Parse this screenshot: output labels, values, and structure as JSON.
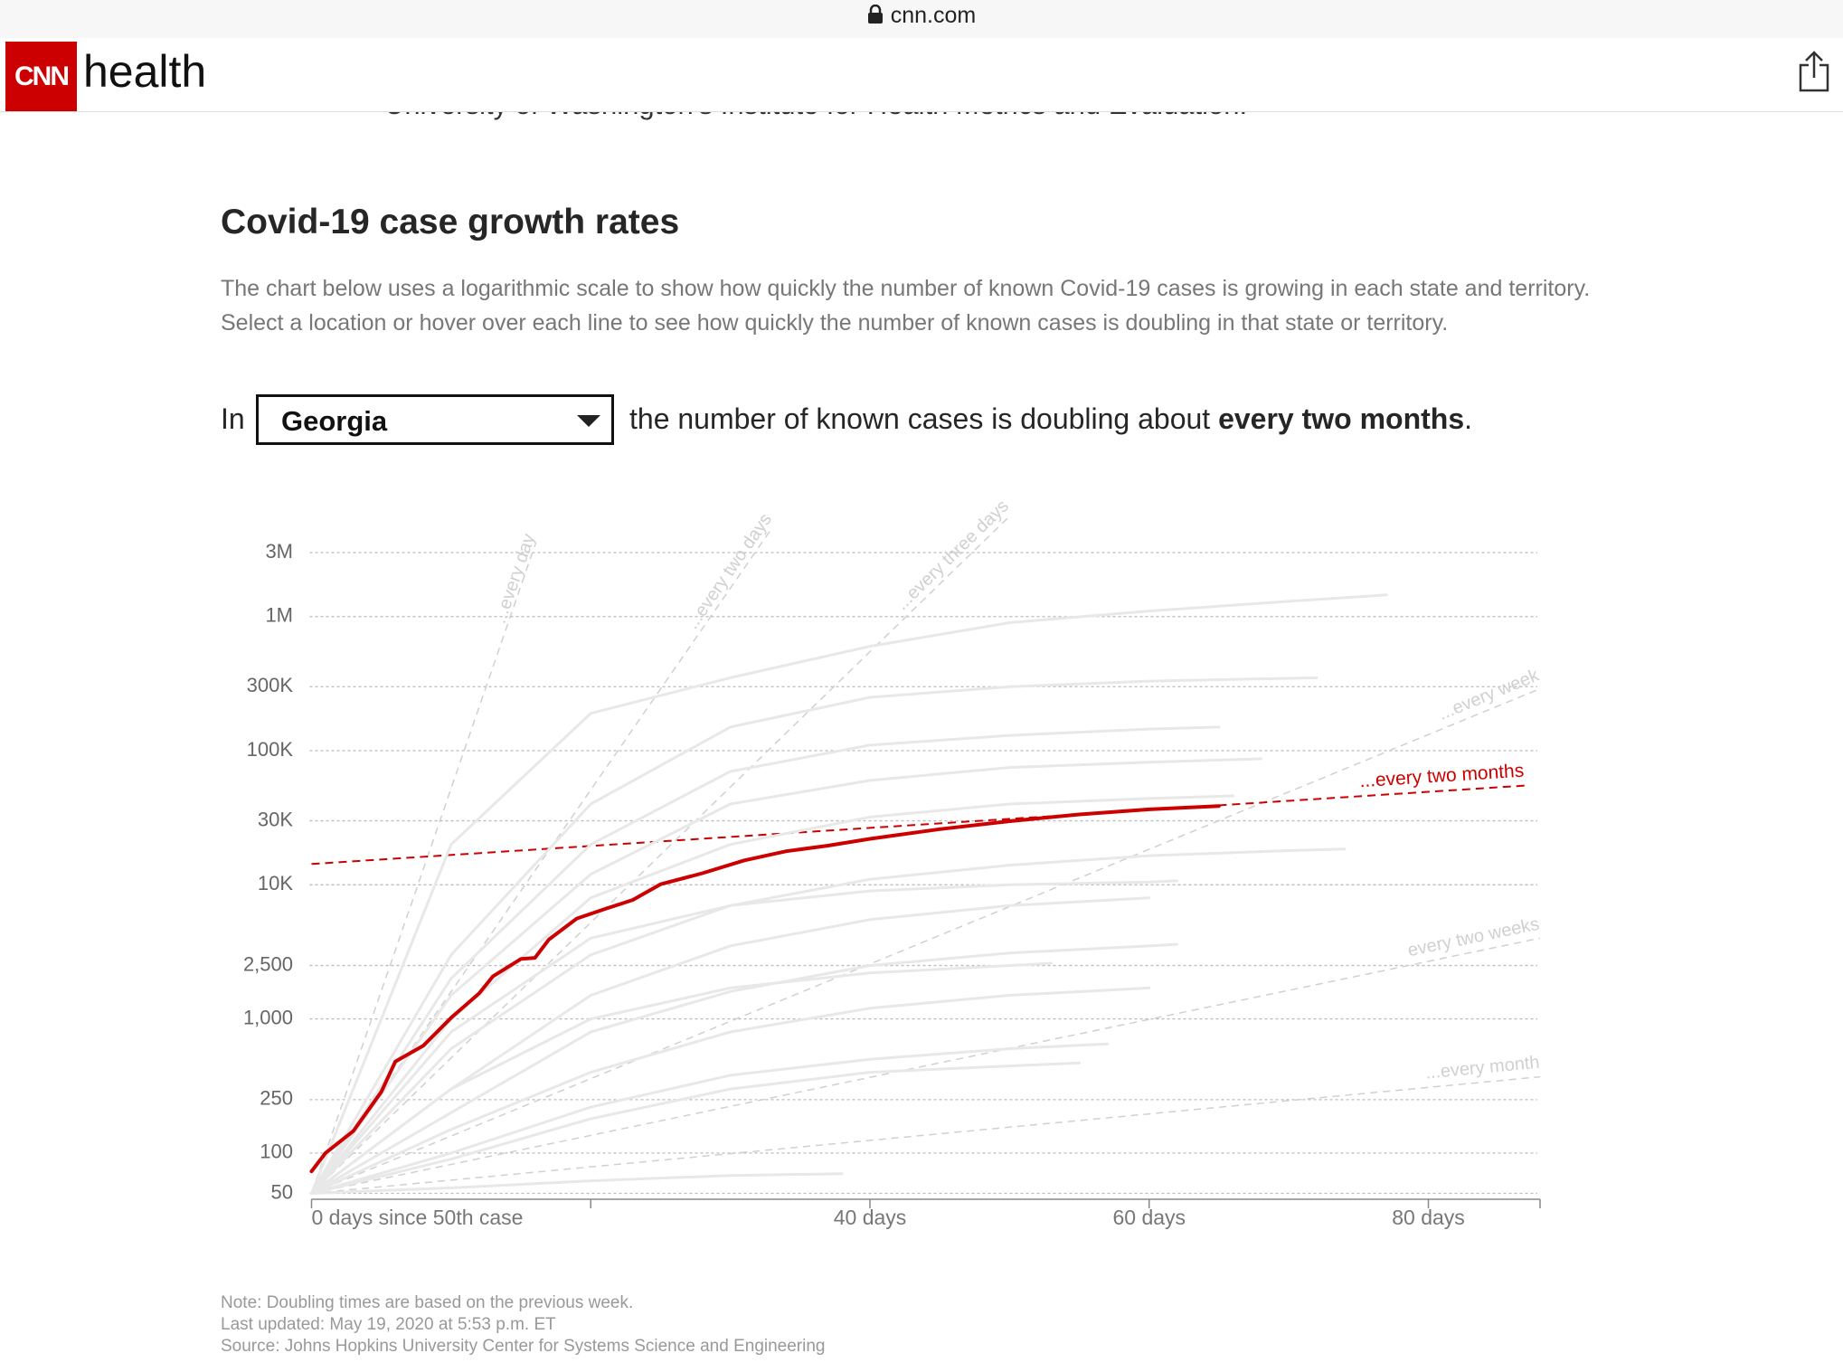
{
  "browser": {
    "url": "cnn.com"
  },
  "header": {
    "logo": "CNN",
    "section": "health"
  },
  "article": {
    "clipped_text": "University of Washington's Institute for Health Metrics and Evaluation.",
    "heading": "Covid-19 case growth rates",
    "description": "The chart below uses a logarithmic scale to show how quickly the number of known Covid-19 cases is growing in each state and territory. Select a location or hover over each line to see how quickly the number of known cases is doubling in that state or territory.",
    "selector": {
      "prefix": "In",
      "sentence": "the number of known cases is doubling about",
      "rate": "every two months",
      "end": "."
    },
    "notes": [
      "Note: Doubling times are based on the previous week.",
      "Last updated: May 19, 2020 at 5:53 p.m. ET",
      "Source: Johns Hopkins University Center for Systems Science and Engineering"
    ]
  },
  "chart_data": {
    "type": "line",
    "yscale": "log",
    "grid": true,
    "xlim": [
      0,
      88
    ],
    "xticks": [
      {
        "value": 0,
        "label": "0 days since 50th case"
      },
      {
        "value": 20
      },
      {
        "value": 40,
        "label": "40 days"
      },
      {
        "value": 60,
        "label": "60 days"
      },
      {
        "value": 80,
        "label": "80 days"
      }
    ],
    "ylim": [
      50,
      3000000
    ],
    "yticks": [
      50,
      100,
      250,
      {
        "value": 1000,
        "label": "1,000"
      },
      {
        "value": 2500,
        "label": "2,500"
      },
      {
        "value": 10000,
        "label": "10K"
      },
      {
        "value": 30000,
        "label": "30K"
      },
      {
        "value": 100000,
        "label": "100K"
      },
      {
        "value": 300000,
        "label": "300K"
      },
      {
        "value": 1000000,
        "label": "1M"
      },
      {
        "value": 3000000,
        "label": "3M"
      }
    ],
    "reference_lines": [
      {
        "label": "...every day",
        "color": "#d0d0d0",
        "x": [
          0,
          16
        ],
        "values": [
          50,
          3400000
        ]
      },
      {
        "label": "...every two days",
        "color": "#d0d0d0",
        "x": [
          0,
          33
        ],
        "values": [
          50,
          4600000
        ]
      },
      {
        "label": "...every three days",
        "color": "#d0d0d0",
        "x": [
          0,
          50
        ],
        "values": [
          50,
          5600000
        ]
      },
      {
        "label": "...every week",
        "color": "#d0d0d0",
        "x": [
          0,
          88
        ],
        "values": [
          50,
          290000
        ]
      },
      {
        "label": "every two weeks",
        "color": "#d0d0d0",
        "x": [
          0,
          88
        ],
        "values": [
          50,
          4000
        ]
      },
      {
        "label": "...every month",
        "color": "#d0d0d0",
        "x": [
          0,
          88
        ],
        "values": [
          50,
          370
        ]
      },
      {
        "label": "...every two months",
        "color": "#cc0000",
        "x": [
          0,
          87
        ],
        "values": [
          14300,
          55000
        ]
      }
    ],
    "series": [
      {
        "color": "#e8e8e8",
        "x": [
          0,
          10,
          20,
          30,
          40,
          50,
          60,
          70,
          77
        ],
        "values": [
          50,
          20000,
          190000,
          350000,
          600000,
          900000,
          1100000,
          1300000,
          1450000
        ]
      },
      {
        "color": "#e8e8e8",
        "x": [
          0,
          10,
          20,
          30,
          40,
          50,
          60,
          72
        ],
        "values": [
          50,
          3000,
          40000,
          150000,
          250000,
          300000,
          330000,
          350000
        ]
      },
      {
        "color": "#e8e8e8",
        "x": [
          0,
          10,
          20,
          30,
          40,
          50,
          60,
          65
        ],
        "values": [
          50,
          2000,
          20000,
          70000,
          110000,
          130000,
          145000,
          150000
        ]
      },
      {
        "color": "#e8e8e8",
        "x": [
          0,
          10,
          20,
          30,
          40,
          50,
          60,
          68
        ],
        "values": [
          50,
          1500,
          12000,
          40000,
          60000,
          75000,
          82000,
          87000
        ]
      },
      {
        "color": "#e8e8e8",
        "x": [
          0,
          10,
          20,
          30,
          40,
          50,
          60,
          66
        ],
        "values": [
          50,
          1000,
          8000,
          20000,
          32000,
          40000,
          44000,
          46000
        ]
      },
      {
        "color": "#e8e8e8",
        "x": [
          0,
          10,
          20,
          30,
          40,
          50,
          60,
          70,
          74
        ],
        "values": [
          50,
          600,
          3000,
          7000,
          11000,
          14000,
          16500,
          18000,
          18500
        ]
      },
      {
        "color": "#e8e8e8",
        "x": [
          0,
          10,
          20,
          30,
          40,
          50,
          60,
          62
        ],
        "values": [
          50,
          800,
          4000,
          7000,
          9000,
          10000,
          10500,
          10700
        ]
      },
      {
        "color": "#e8e8e8",
        "x": [
          0,
          10,
          20,
          30,
          40,
          50,
          60
        ],
        "values": [
          50,
          300,
          1500,
          3500,
          5500,
          7000,
          8000
        ]
      },
      {
        "color": "#e8e8e8",
        "x": [
          0,
          10,
          20,
          30,
          40,
          50,
          60,
          62
        ],
        "values": [
          50,
          200,
          800,
          1600,
          2500,
          3100,
          3500,
          3600
        ]
      },
      {
        "color": "#e8e8e8",
        "x": [
          0,
          10,
          20,
          30,
          40,
          53
        ],
        "values": [
          50,
          300,
          1000,
          1700,
          2200,
          2600
        ]
      },
      {
        "color": "#e8e8e8",
        "x": [
          0,
          10,
          20,
          30,
          40,
          50,
          60
        ],
        "values": [
          50,
          150,
          400,
          800,
          1200,
          1500,
          1700
        ]
      },
      {
        "color": "#e8e8e8",
        "x": [
          0,
          10,
          20,
          30,
          40,
          50,
          57
        ],
        "values": [
          50,
          100,
          220,
          380,
          500,
          600,
          650
        ]
      },
      {
        "color": "#e8e8e8",
        "x": [
          0,
          10,
          20,
          30,
          40,
          55
        ],
        "values": [
          50,
          90,
          180,
          300,
          400,
          470
        ]
      },
      {
        "color": "#e8e8e8",
        "x": [
          0,
          10,
          20,
          30,
          38
        ],
        "values": [
          50,
          55,
          62,
          68,
          70
        ]
      },
      {
        "name": "Georgia",
        "color": "#cc0000",
        "x": [
          0,
          1,
          3,
          5,
          6,
          8,
          10,
          12,
          13,
          15,
          16,
          17,
          19,
          21,
          23,
          25,
          28,
          31,
          34,
          37,
          40,
          45,
          50,
          55,
          60,
          65
        ],
        "values": [
          73,
          100,
          146,
          286,
          480,
          630,
          1020,
          1550,
          2080,
          2800,
          2850,
          3900,
          5600,
          6600,
          7700,
          10100,
          12200,
          15200,
          17800,
          19600,
          22000,
          26000,
          29800,
          33500,
          36500,
          38700
        ]
      }
    ]
  }
}
